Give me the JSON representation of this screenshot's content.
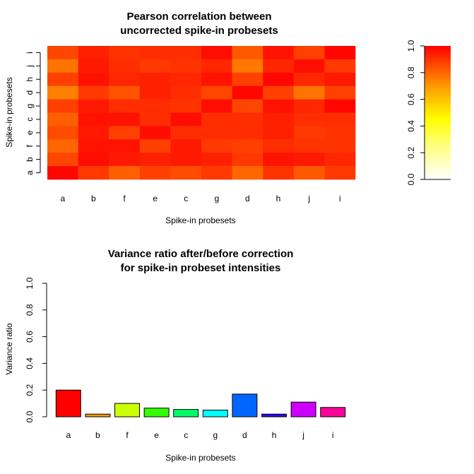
{
  "chart_data": [
    {
      "type": "heatmap",
      "title": "Pearson correlation between\nuncorrected spike-in probesets",
      "title_lines": [
        "Pearson correlation between",
        "uncorrected spike-in probesets"
      ],
      "xlabel": "Spike-in probesets",
      "ylabel": "Spike-in probesets",
      "x_categories": [
        "a",
        "b",
        "f",
        "e",
        "c",
        "g",
        "d",
        "h",
        "j",
        "i"
      ],
      "y_categories_bottom_to_top": [
        "a",
        "b",
        "f",
        "e",
        "c",
        "g",
        "d",
        "h",
        "j",
        "i"
      ],
      "colormap": "heat (red = 1.0, white = 0.0)",
      "value_range": [
        0,
        1
      ],
      "values_rows_top_to_bottom": [
        [
          0.89,
          0.95,
          0.92,
          0.93,
          0.93,
          0.98,
          0.86,
          0.97,
          0.9,
          0.99
        ],
        [
          0.82,
          0.96,
          0.93,
          0.91,
          0.92,
          0.94,
          0.81,
          0.94,
          0.98,
          0.91
        ],
        [
          0.9,
          0.97,
          0.94,
          0.95,
          0.94,
          0.97,
          0.9,
          0.99,
          0.94,
          0.96
        ],
        [
          0.8,
          0.91,
          0.87,
          0.95,
          0.93,
          0.89,
          0.99,
          0.9,
          0.82,
          0.9
        ],
        [
          0.9,
          0.96,
          0.93,
          0.93,
          0.92,
          0.98,
          0.89,
          0.97,
          0.94,
          0.99
        ],
        [
          0.85,
          0.97,
          0.97,
          0.93,
          0.98,
          0.93,
          0.93,
          0.95,
          0.93,
          0.93
        ],
        [
          0.88,
          0.96,
          0.9,
          0.98,
          0.93,
          0.93,
          0.93,
          0.95,
          0.91,
          0.92
        ],
        [
          0.84,
          0.97,
          0.97,
          0.9,
          0.96,
          0.91,
          0.9,
          0.93,
          0.92,
          0.92
        ],
        [
          0.89,
          0.98,
          0.96,
          0.95,
          0.96,
          0.95,
          0.91,
          0.97,
          0.96,
          0.94
        ],
        [
          0.99,
          0.91,
          0.85,
          0.9,
          0.88,
          0.91,
          0.84,
          0.92,
          0.86,
          0.91
        ]
      ]
    },
    {
      "type": "colorbar",
      "ticks": [
        "0.0",
        "0.2",
        "0.4",
        "0.6",
        "0.8",
        "1.0"
      ],
      "range": [
        0,
        1
      ]
    },
    {
      "type": "bar",
      "title": "Variance ratio after/before correction\nfor spike-in probeset intensities",
      "title_lines": [
        "Variance ratio after/before correction",
        "for spike-in probeset intensities"
      ],
      "xlabel": "Spike-in probesets",
      "ylabel": "Variance ratio",
      "ylim": [
        0,
        1
      ],
      "yticks": [
        "0.0",
        "0.2",
        "0.4",
        "0.6",
        "0.8",
        "1.0"
      ],
      "categories": [
        "a",
        "b",
        "f",
        "e",
        "c",
        "g",
        "d",
        "h",
        "j",
        "i"
      ],
      "values": [
        0.2,
        0.02,
        0.1,
        0.065,
        0.055,
        0.05,
        0.17,
        0.02,
        0.11,
        0.07
      ],
      "colors": [
        "#ff0000",
        "#ff9900",
        "#ccff00",
        "#33ff00",
        "#00ff66",
        "#00ffff",
        "#0066ff",
        "#3300ff",
        "#cc00ff",
        "#ff0099"
      ]
    }
  ]
}
